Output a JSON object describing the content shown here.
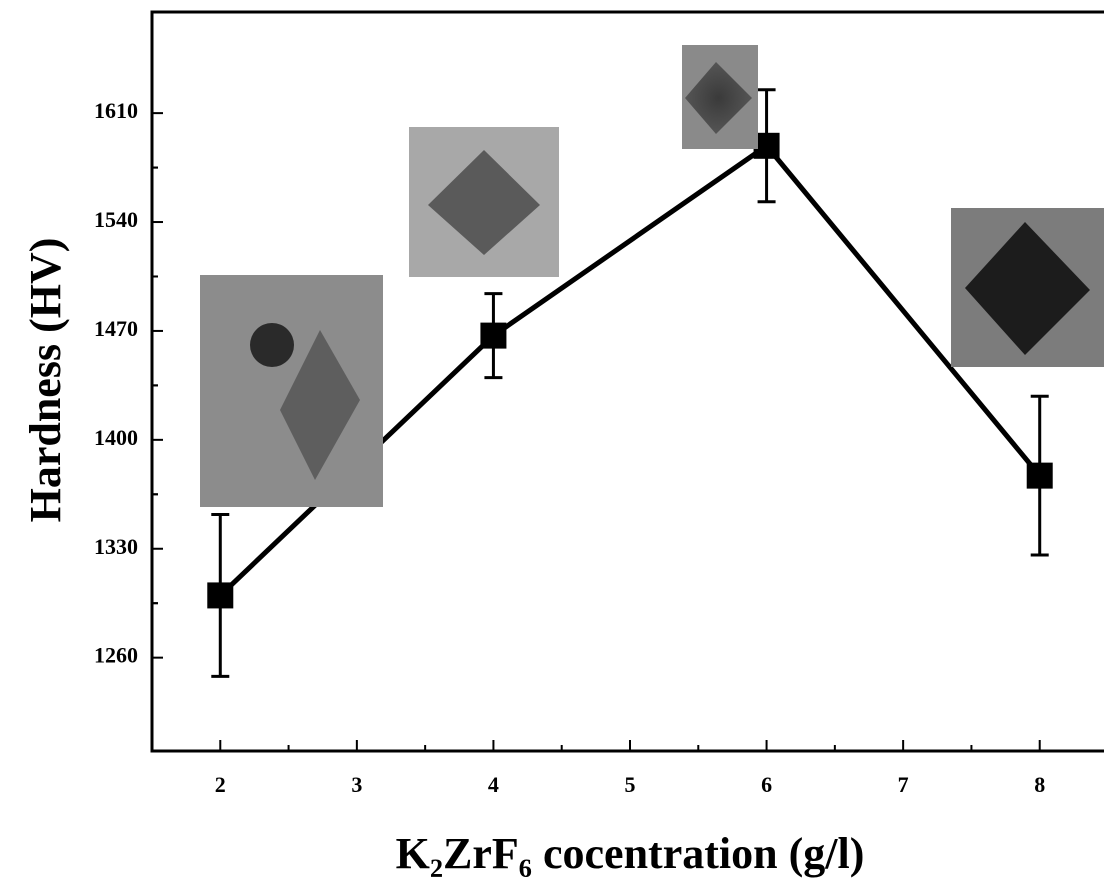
{
  "chart_data": {
    "type": "line",
    "x_label": "K₂ZrF₆ cocentration (g/l)",
    "y_label": "Hardness (HV)",
    "x": [
      2,
      4,
      6,
      8
    ],
    "values": [
      1300,
      1467,
      1589,
      1377
    ],
    "errors": [
      52,
      27,
      36,
      51
    ],
    "color": "#000000",
    "xlim": [
      1.5,
      8.5
    ],
    "xticks": [
      2,
      3,
      4,
      5,
      6,
      7,
      8
    ],
    "ylim": [
      1200,
      1675
    ],
    "yticks": [
      1260,
      1330,
      1400,
      1470,
      1540,
      1610
    ]
  }
}
